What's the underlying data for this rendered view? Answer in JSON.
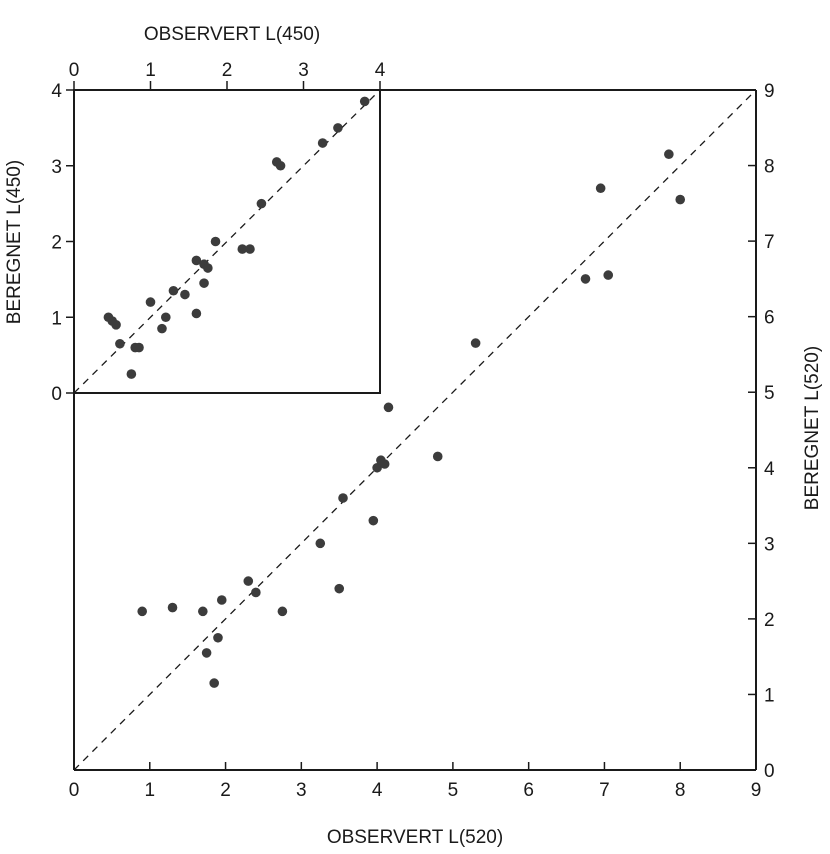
{
  "colors": {
    "ink": "#1a1a1a",
    "point": "#3c3c3c",
    "background": "#ffffff"
  },
  "chart_data": [
    {
      "type": "scatter",
      "name": "main",
      "xlabel": "OBSERVERT  L(520)",
      "ylabel": "BEREGNET L(520)",
      "xlim": [
        0,
        9
      ],
      "ylim": [
        0,
        9
      ],
      "xticks": [
        "0",
        "1",
        "2",
        "3",
        "4",
        "5",
        "6",
        "7",
        "8",
        "9"
      ],
      "yticks": [
        "0",
        "1",
        "2",
        "3",
        "4",
        "5",
        "6",
        "7",
        "8",
        "9"
      ],
      "y_axis_side": "right",
      "grid": false,
      "reference_line": "y = x (dashed)",
      "points": [
        [
          0.9,
          2.1
        ],
        [
          1.3,
          2.15
        ],
        [
          1.7,
          2.1
        ],
        [
          1.95,
          2.25
        ],
        [
          1.75,
          1.55
        ],
        [
          1.9,
          1.75
        ],
        [
          1.85,
          1.15
        ],
        [
          2.3,
          2.5
        ],
        [
          2.4,
          2.35
        ],
        [
          2.75,
          2.1
        ],
        [
          3.25,
          3.0
        ],
        [
          3.5,
          2.4
        ],
        [
          3.55,
          3.6
        ],
        [
          3.95,
          3.3
        ],
        [
          4.0,
          4.0
        ],
        [
          4.05,
          4.1
        ],
        [
          4.1,
          4.05
        ],
        [
          4.15,
          4.8
        ],
        [
          4.8,
          4.15
        ],
        [
          5.3,
          5.65
        ],
        [
          6.75,
          6.5
        ],
        [
          6.95,
          7.7
        ],
        [
          7.05,
          6.55
        ],
        [
          7.85,
          8.15
        ],
        [
          8.0,
          7.55
        ]
      ]
    },
    {
      "type": "scatter",
      "name": "inset",
      "xlabel": "OBSERVERT L(450)",
      "ylabel": "BEREGNET L(450)",
      "xlim": [
        0,
        4
      ],
      "ylim": [
        0,
        4
      ],
      "xticks": [
        "0",
        "1",
        "2",
        "3",
        "4"
      ],
      "yticks": [
        "0",
        "1",
        "2",
        "3",
        "4"
      ],
      "x_axis_side": "top",
      "grid": false,
      "reference_line": "y = x (dashed)",
      "points": [
        [
          0.45,
          1.0
        ],
        [
          0.5,
          0.95
        ],
        [
          0.55,
          0.9
        ],
        [
          0.6,
          0.65
        ],
        [
          0.75,
          0.25
        ],
        [
          0.8,
          0.6
        ],
        [
          0.85,
          0.6
        ],
        [
          1.0,
          1.2
        ],
        [
          1.15,
          0.85
        ],
        [
          1.2,
          1.0
        ],
        [
          1.3,
          1.35
        ],
        [
          1.45,
          1.3
        ],
        [
          1.6,
          1.75
        ],
        [
          1.6,
          1.05
        ],
        [
          1.7,
          1.7
        ],
        [
          1.7,
          1.45
        ],
        [
          1.75,
          1.65
        ],
        [
          1.85,
          2.0
        ],
        [
          2.2,
          1.9
        ],
        [
          2.3,
          1.9
        ],
        [
          2.45,
          2.5
        ],
        [
          2.65,
          3.05
        ],
        [
          2.7,
          3.0
        ],
        [
          3.25,
          3.3
        ],
        [
          3.45,
          3.5
        ],
        [
          3.8,
          3.85
        ]
      ]
    }
  ]
}
